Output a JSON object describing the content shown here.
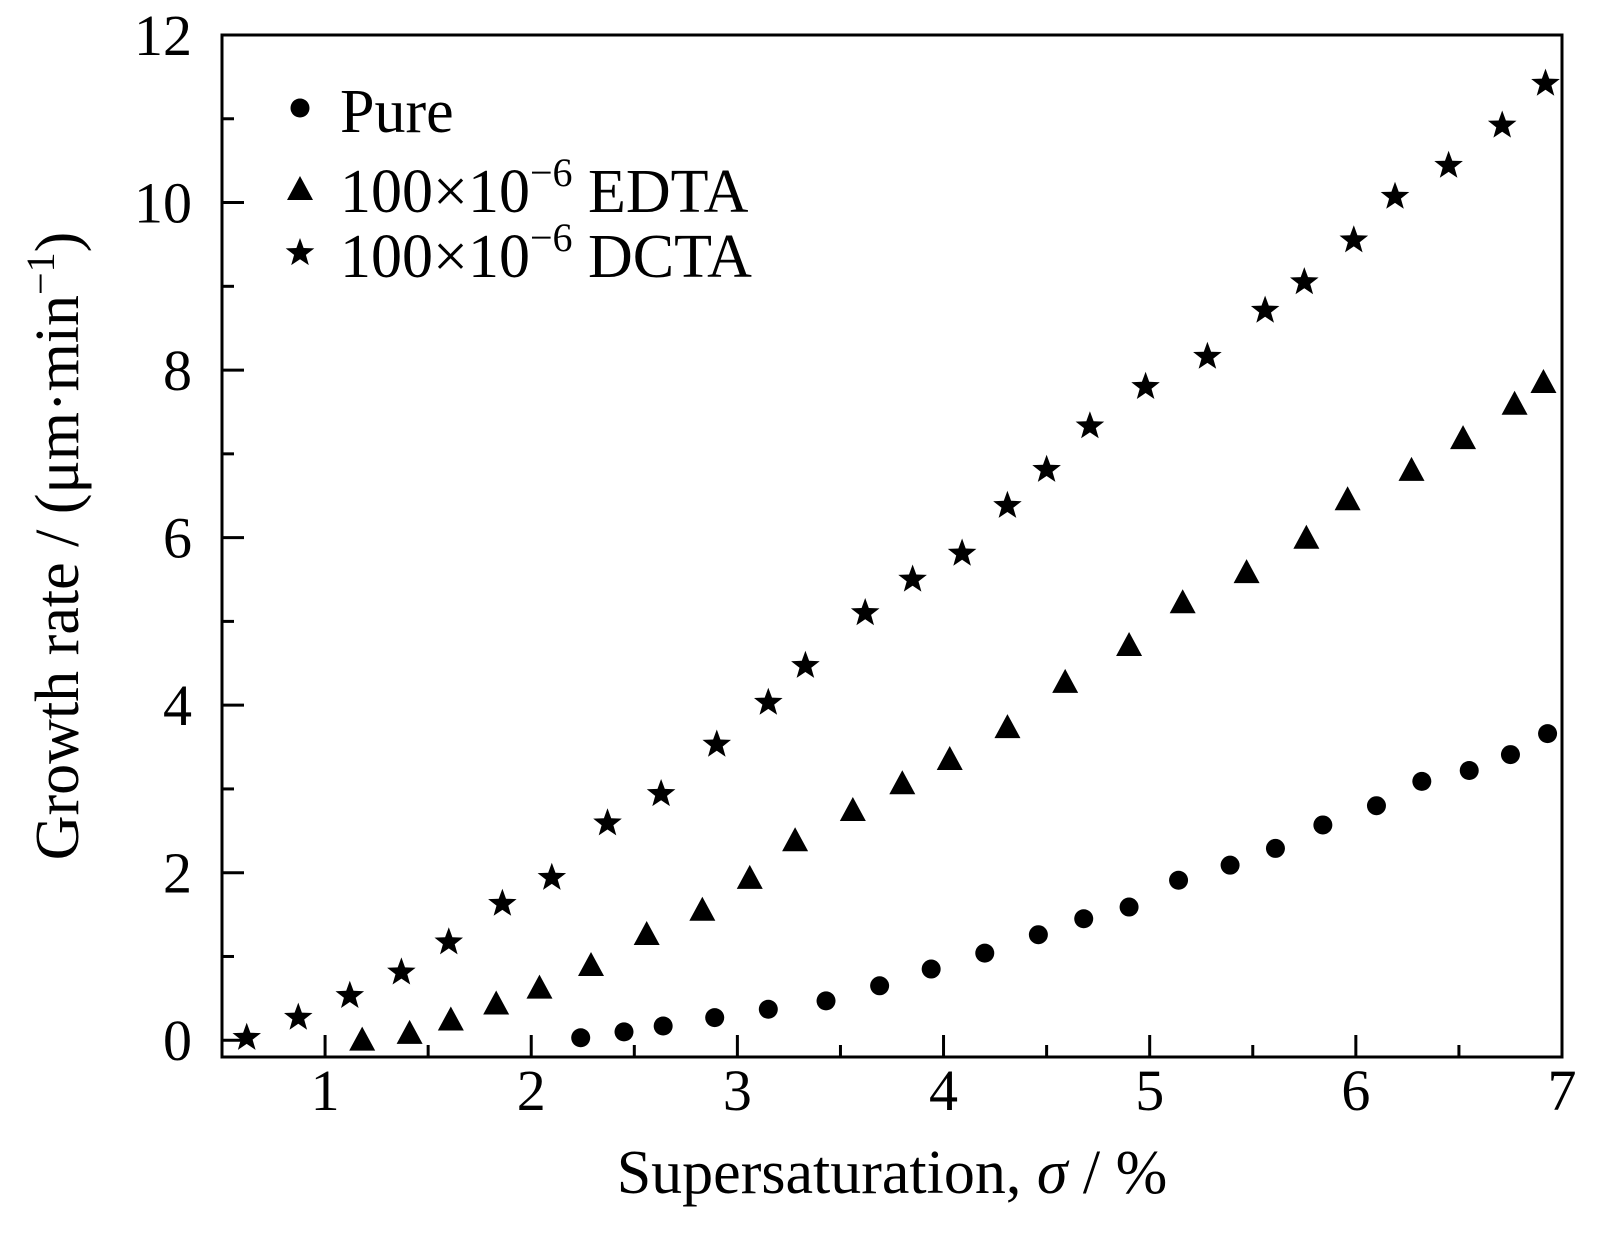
{
  "chart_data": {
    "type": "scatter",
    "xlabel": "Supersaturation, σ / %",
    "xlabel_parts": {
      "before": "Supersaturation, ",
      "symbol": "σ",
      "after": " / %"
    },
    "ylabel": "Growth rate / (μm·min−1)",
    "ylabel_parts": {
      "base": "Growth rate / (μm·min",
      "sup": "−1",
      "close": ")"
    },
    "xlim": [
      0.5,
      7
    ],
    "ylim": [
      -0.2,
      12
    ],
    "x_ticks": [
      1,
      2,
      3,
      4,
      5,
      6,
      7
    ],
    "y_ticks": [
      0,
      2,
      4,
      6,
      8,
      10,
      12
    ],
    "x_tick_labels": [
      "1",
      "2",
      "3",
      "4",
      "5",
      "6",
      "7"
    ],
    "y_tick_labels": [
      "0",
      "2",
      "4",
      "6",
      "8",
      "10",
      "12"
    ],
    "x_minor_step": 0.5,
    "y_minor_step": 1,
    "grid": false,
    "legend_position": "top-left",
    "series": [
      {
        "name": "Pure",
        "label_parts": {
          "base": "Pure",
          "sup": "",
          "tail": ""
        },
        "marker": "circle",
        "color": "#000000",
        "points": [
          [
            2.24,
            0.03
          ],
          [
            2.45,
            0.1
          ],
          [
            2.64,
            0.17
          ],
          [
            2.89,
            0.27
          ],
          [
            3.15,
            0.37
          ],
          [
            3.43,
            0.47
          ],
          [
            3.69,
            0.65
          ],
          [
            3.94,
            0.85
          ],
          [
            4.2,
            1.04
          ],
          [
            4.46,
            1.26
          ],
          [
            4.68,
            1.45
          ],
          [
            4.9,
            1.59
          ],
          [
            5.14,
            1.91
          ],
          [
            5.39,
            2.09
          ],
          [
            5.61,
            2.29
          ],
          [
            5.84,
            2.57
          ],
          [
            6.1,
            2.8
          ],
          [
            6.32,
            3.09
          ],
          [
            6.55,
            3.22
          ],
          [
            6.75,
            3.41
          ],
          [
            6.93,
            3.66
          ]
        ]
      },
      {
        "name": "100×10−6 EDTA",
        "label_parts": {
          "base": "100×10",
          "sup": "−6",
          "tail": " EDTA"
        },
        "marker": "triangle",
        "color": "#000000",
        "points": [
          [
            1.18,
            0.02
          ],
          [
            1.41,
            0.1
          ],
          [
            1.61,
            0.26
          ],
          [
            1.83,
            0.45
          ],
          [
            2.04,
            0.64
          ],
          [
            2.29,
            0.91
          ],
          [
            2.56,
            1.28
          ],
          [
            2.83,
            1.57
          ],
          [
            3.06,
            1.95
          ],
          [
            3.28,
            2.4
          ],
          [
            3.56,
            2.76
          ],
          [
            3.8,
            3.08
          ],
          [
            4.03,
            3.37
          ],
          [
            4.31,
            3.75
          ],
          [
            4.59,
            4.29
          ],
          [
            4.9,
            4.73
          ],
          [
            5.16,
            5.24
          ],
          [
            5.47,
            5.6
          ],
          [
            5.76,
            6.01
          ],
          [
            5.96,
            6.47
          ],
          [
            6.27,
            6.82
          ],
          [
            6.52,
            7.2
          ],
          [
            6.77,
            7.61
          ],
          [
            6.91,
            7.87
          ]
        ]
      },
      {
        "name": "100×10−6 DCTA",
        "label_parts": {
          "base": "100×10",
          "sup": "−6",
          "tail": " DCTA"
        },
        "marker": "star",
        "color": "#000000",
        "points": [
          [
            0.62,
            0.03
          ],
          [
            0.87,
            0.27
          ],
          [
            1.12,
            0.53
          ],
          [
            1.37,
            0.81
          ],
          [
            1.6,
            1.17
          ],
          [
            1.86,
            1.63
          ],
          [
            2.1,
            1.94
          ],
          [
            2.37,
            2.59
          ],
          [
            2.63,
            2.94
          ],
          [
            2.9,
            3.53
          ],
          [
            3.15,
            4.03
          ],
          [
            3.33,
            4.47
          ],
          [
            3.62,
            5.1
          ],
          [
            3.85,
            5.5
          ],
          [
            4.09,
            5.81
          ],
          [
            4.31,
            6.38
          ],
          [
            4.5,
            6.81
          ],
          [
            4.71,
            7.33
          ],
          [
            4.98,
            7.8
          ],
          [
            5.28,
            8.16
          ],
          [
            5.56,
            8.71
          ],
          [
            5.75,
            9.05
          ],
          [
            5.99,
            9.55
          ],
          [
            6.19,
            10.07
          ],
          [
            6.45,
            10.44
          ],
          [
            6.71,
            10.92
          ],
          [
            6.92,
            11.42
          ]
        ]
      }
    ]
  }
}
